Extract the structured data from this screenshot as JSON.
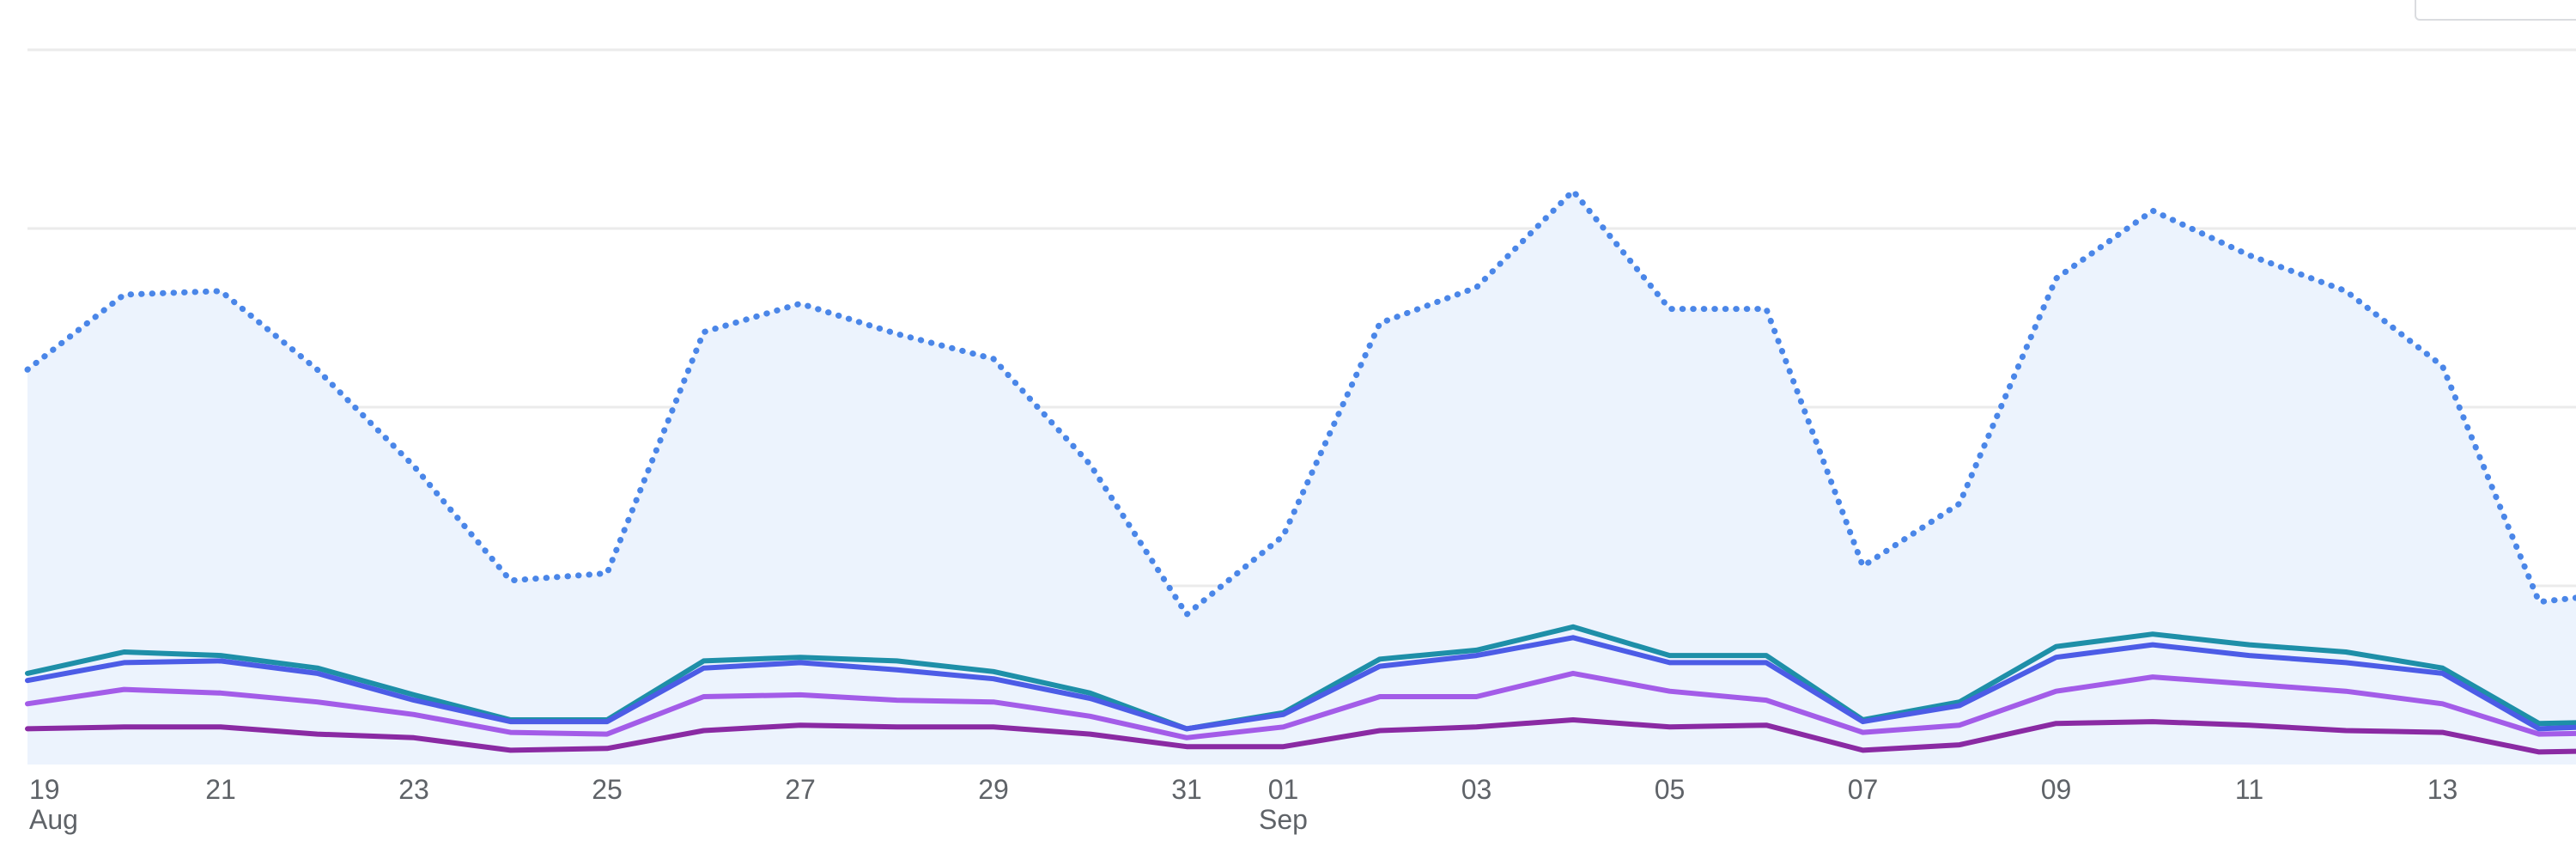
{
  "colors": {
    "background": "#ffffff",
    "gridline": "#ebebeb",
    "area_fill": "#ecf3fd",
    "tick_text": "#5f6368"
  },
  "chart_data": {
    "type": "line",
    "grid": true,
    "legend": "none",
    "x": [
      "2023-08-19",
      "2023-08-20",
      "2023-08-21",
      "2023-08-22",
      "2023-08-23",
      "2023-08-24",
      "2023-08-25",
      "2023-08-26",
      "2023-08-27",
      "2023-08-28",
      "2023-08-29",
      "2023-08-30",
      "2023-08-31",
      "2023-09-01",
      "2023-09-02",
      "2023-09-03",
      "2023-09-04",
      "2023-09-05",
      "2023-09-06",
      "2023-09-07",
      "2023-09-08",
      "2023-09-09",
      "2023-09-10",
      "2023-09-11",
      "2023-09-12",
      "2023-09-13",
      "2023-09-14",
      "2023-09-15"
    ],
    "xlim": [
      "2023-08-19",
      "2023-09-15"
    ],
    "ylim": [
      0,
      4
    ],
    "xticks": [
      {
        "label": "19",
        "sub": "Aug"
      },
      {
        "label": "21",
        "sub": ""
      },
      {
        "label": "23",
        "sub": ""
      },
      {
        "label": "25",
        "sub": ""
      },
      {
        "label": "27",
        "sub": ""
      },
      {
        "label": "29",
        "sub": ""
      },
      {
        "label": "31",
        "sub": ""
      },
      {
        "label": "01",
        "sub": "Sep"
      },
      {
        "label": "03",
        "sub": ""
      },
      {
        "label": "05",
        "sub": ""
      },
      {
        "label": "07",
        "sub": ""
      },
      {
        "label": "09",
        "sub": ""
      },
      {
        "label": "11",
        "sub": ""
      },
      {
        "label": "13",
        "sub": ""
      }
    ],
    "series": [
      {
        "color": "#4a86e8",
        "style": "dotted",
        "fill": true,
        "values": [
          2.21,
          2.63,
          2.65,
          2.21,
          1.67,
          1.03,
          1.07,
          2.42,
          2.58,
          2.41,
          2.27,
          1.68,
          0.84,
          1.28,
          2.47,
          2.67,
          3.21,
          2.55,
          2.55,
          1.11,
          1.46,
          2.72,
          3.1,
          2.85,
          2.65,
          2.23,
          0.91,
          0.97
        ]
      },
      {
        "color": "#1e8fa8",
        "style": "solid",
        "fill": false,
        "values": [
          0.51,
          0.63,
          0.61,
          0.54,
          0.39,
          0.25,
          0.25,
          0.58,
          0.6,
          0.58,
          0.52,
          0.4,
          0.2,
          0.29,
          0.59,
          0.64,
          0.77,
          0.61,
          0.61,
          0.25,
          0.35,
          0.66,
          0.73,
          0.67,
          0.63,
          0.54,
          0.23,
          0.24
        ]
      },
      {
        "color": "#4c5ce6",
        "style": "solid",
        "fill": false,
        "values": [
          0.47,
          0.57,
          0.58,
          0.51,
          0.36,
          0.24,
          0.24,
          0.54,
          0.57,
          0.53,
          0.48,
          0.37,
          0.2,
          0.28,
          0.55,
          0.61,
          0.71,
          0.57,
          0.57,
          0.24,
          0.33,
          0.6,
          0.67,
          0.61,
          0.57,
          0.51,
          0.2,
          0.22
        ]
      },
      {
        "color": "#a35ce8",
        "style": "solid",
        "fill": false,
        "values": [
          0.34,
          0.42,
          0.4,
          0.35,
          0.28,
          0.18,
          0.17,
          0.38,
          0.39,
          0.36,
          0.35,
          0.27,
          0.15,
          0.21,
          0.38,
          0.38,
          0.51,
          0.41,
          0.36,
          0.18,
          0.22,
          0.41,
          0.49,
          0.45,
          0.41,
          0.34,
          0.17,
          0.18
        ]
      },
      {
        "color": "#8a2aa3",
        "style": "solid",
        "fill": false,
        "values": [
          0.2,
          0.21,
          0.21,
          0.17,
          0.15,
          0.08,
          0.09,
          0.19,
          0.22,
          0.21,
          0.21,
          0.17,
          0.1,
          0.1,
          0.19,
          0.21,
          0.25,
          0.21,
          0.22,
          0.08,
          0.11,
          0.23,
          0.24,
          0.22,
          0.19,
          0.18,
          0.07,
          0.08
        ]
      }
    ]
  }
}
